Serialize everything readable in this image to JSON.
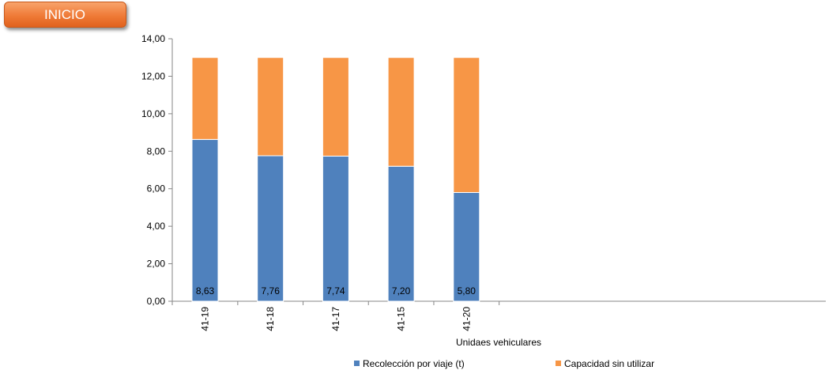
{
  "button": {
    "label": "INICIO"
  },
  "colors": {
    "series1": "#4f81bd",
    "series2": "#f79646",
    "button": "#ef7a37"
  },
  "chart_data": {
    "type": "bar",
    "stacked": true,
    "categories": [
      "41-19",
      "41-18",
      "41-17",
      "41-15",
      "41-20"
    ],
    "series": [
      {
        "name": "Recolección por viaje (t)",
        "values": [
          8.63,
          7.76,
          7.74,
          7.2,
          5.8
        ],
        "labels": [
          "8,63",
          "7,76",
          "7,74",
          "7,20",
          "5,80"
        ]
      },
      {
        "name": "Capacidad sin utilizar",
        "values": [
          4.37,
          5.24,
          5.26,
          5.8,
          7.2
        ]
      }
    ],
    "xlabel": "Unidaes vehiculares",
    "ylabel": "",
    "ylim": [
      0,
      14
    ],
    "yticks": [
      "0,00",
      "2,00",
      "4,00",
      "6,00",
      "8,00",
      "10,00",
      "12,00",
      "14,00"
    ],
    "legend_position": "bottom",
    "grid": false
  }
}
